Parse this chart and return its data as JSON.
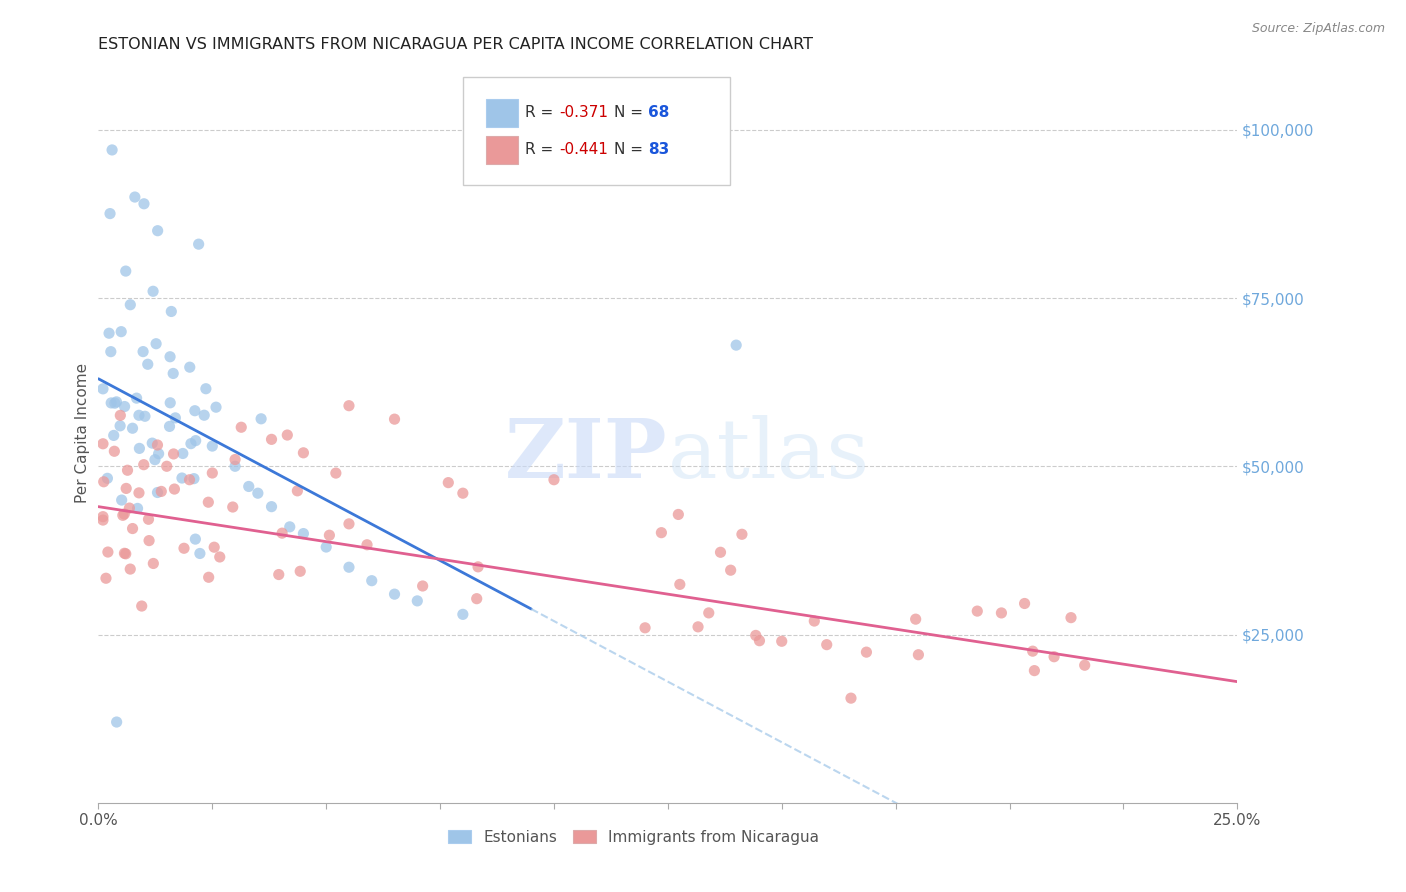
{
  "title": "ESTONIAN VS IMMIGRANTS FROM NICARAGUA PER CAPITA INCOME CORRELATION CHART",
  "source": "Source: ZipAtlas.com",
  "ylabel": "Per Capita Income",
  "ytick_labels": [
    "$25,000",
    "$50,000",
    "$75,000",
    "$100,000"
  ],
  "ytick_values": [
    25000,
    50000,
    75000,
    100000
  ],
  "xlim": [
    0.0,
    0.25
  ],
  "ylim": [
    0,
    110000
  ],
  "blue_color": "#9fc5e8",
  "pink_color": "#ea9999",
  "blue_line_color": "#3c78d8",
  "pink_line_color": "#e06090",
  "blue_line_dashed_color": "#9fc5e8",
  "watermark_zip": "ZIP",
  "watermark_atlas": "atlas",
  "background_color": "#ffffff",
  "grid_color": "#cccccc",
  "right_tick_color": "#6fa8dc"
}
